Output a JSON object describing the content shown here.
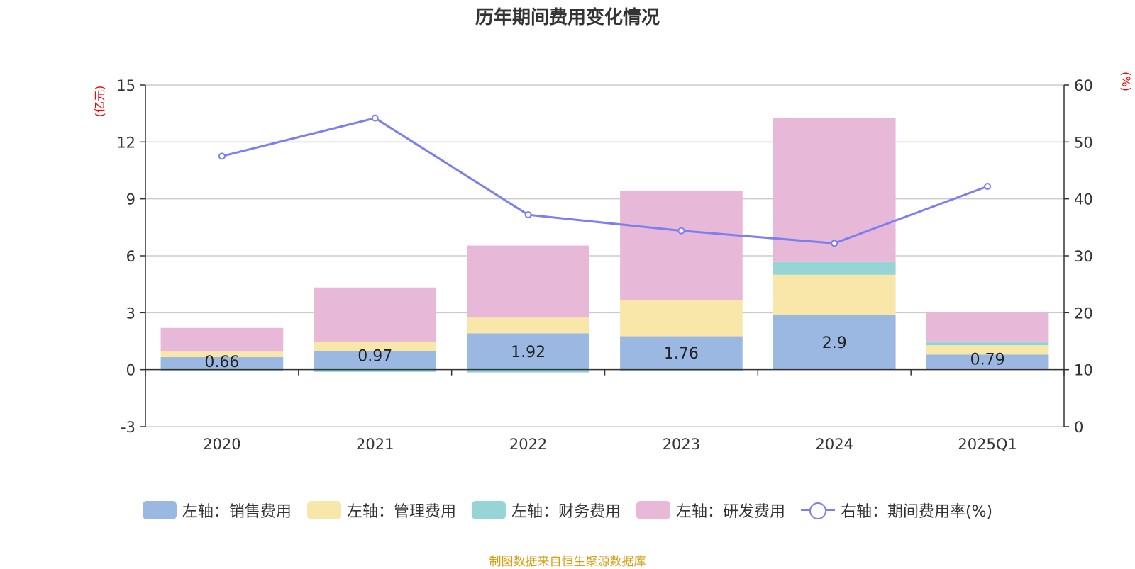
{
  "title": "历年期间费用变化情况",
  "source": "制图数据来自恒生聚源数据库",
  "chart_data": {
    "type": "bar",
    "stacked": true,
    "categories": [
      "2020",
      "2021",
      "2022",
      "2023",
      "2024",
      "2025Q1"
    ],
    "left_axis": {
      "unit": "(亿元)",
      "ylim": [
        -3,
        15
      ],
      "ticks": [
        -3,
        0,
        3,
        6,
        9,
        12,
        15
      ]
    },
    "right_axis": {
      "unit": "(%)",
      "ylim": [
        0,
        60
      ],
      "ticks": [
        0,
        10,
        20,
        30,
        40,
        50,
        60
      ]
    },
    "series": [
      {
        "name": "左轴：销售费用",
        "axis": "left",
        "type": "bar",
        "color": "#9bb8e3",
        "values": [
          0.66,
          0.97,
          1.92,
          1.76,
          2.9,
          0.79
        ],
        "labels": [
          "0.66",
          "0.97",
          "1.92",
          "1.76",
          "2.9",
          "0.79"
        ]
      },
      {
        "name": "左轴：管理费用",
        "axis": "left",
        "type": "bar",
        "color": "#f8e7a8",
        "values": [
          0.29,
          0.5,
          0.82,
          1.92,
          2.1,
          0.5
        ]
      },
      {
        "name": "左轴：财务费用",
        "axis": "left",
        "type": "bar",
        "color": "#96d5d6",
        "values": [
          -0.08,
          -0.12,
          -0.15,
          -0.05,
          0.67,
          0.2
        ]
      },
      {
        "name": "左轴：研发费用",
        "axis": "left",
        "type": "bar",
        "color": "#e8b8d9",
        "values": [
          1.25,
          2.86,
          3.8,
          5.75,
          7.6,
          1.51
        ]
      },
      {
        "name": "右轴：期间费用率(%)",
        "axis": "right",
        "type": "line",
        "color": "#7b7ff0",
        "values": [
          47.5,
          54.2,
          37.2,
          34.4,
          32.2,
          42.2
        ]
      }
    ],
    "grid": true,
    "legend": "bottom"
  }
}
